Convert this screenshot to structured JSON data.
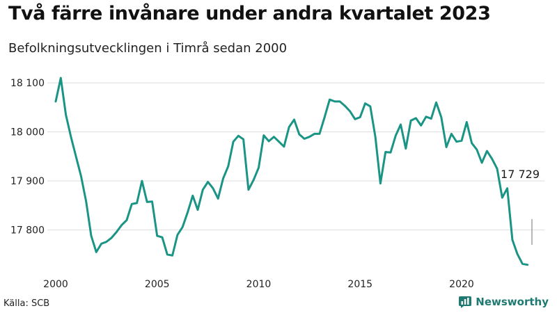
{
  "chart_data": {
    "type": "line",
    "title": "Två färre invånare under andra kvartalet 2023",
    "subtitle": "Befolkningsutvecklingen i Timrå sedan 2000",
    "source": "Källa: SCB",
    "brand": "Newsworthy",
    "xlabel": "",
    "ylabel": "",
    "x_start": 2000.0,
    "x_step": 0.25,
    "values": [
      18062,
      18110,
      18035,
      17990,
      17950,
      17910,
      17858,
      17788,
      17755,
      17772,
      17776,
      17784,
      17796,
      17810,
      17820,
      17853,
      17855,
      17900,
      17857,
      17858,
      17788,
      17785,
      17750,
      17748,
      17790,
      17806,
      17836,
      17870,
      17841,
      17882,
      17898,
      17885,
      17864,
      17905,
      17930,
      17980,
      17992,
      17985,
      17882,
      17902,
      17927,
      17993,
      17981,
      17990,
      17980,
      17970,
      18010,
      18025,
      17995,
      17986,
      17990,
      17996,
      17996,
      18030,
      18066,
      18062,
      18062,
      18053,
      18042,
      18026,
      18030,
      18058,
      18052,
      17990,
      17895,
      17959,
      17958,
      17992,
      18015,
      17966,
      18023,
      18028,
      18013,
      18031,
      18027,
      18060,
      18030,
      17969,
      17996,
      17980,
      17982,
      18020,
      17977,
      17964,
      17937,
      17961,
      17945,
      17925,
      17866,
      17885,
      17780,
      17751,
      17731,
      17729
    ],
    "last_value_label": "17 729",
    "x_ticks": [
      2000,
      2005,
      2010,
      2015,
      2020
    ],
    "x_tick_labels": [
      "2000",
      "2005",
      "2010",
      "2015",
      "2020"
    ],
    "xlim": [
      2000.0,
      2023.5
    ],
    "y_ticks": [
      17800,
      17900,
      18000,
      18100
    ],
    "y_tick_labels": [
      "17 800",
      "17 900",
      "18 000",
      "18 100"
    ],
    "ylim": [
      17730,
      18120
    ],
    "grid": true,
    "legend": "none",
    "colors": {
      "line": "#1a9485",
      "grid": "#dddddd",
      "brand": "#1f7a72"
    }
  }
}
